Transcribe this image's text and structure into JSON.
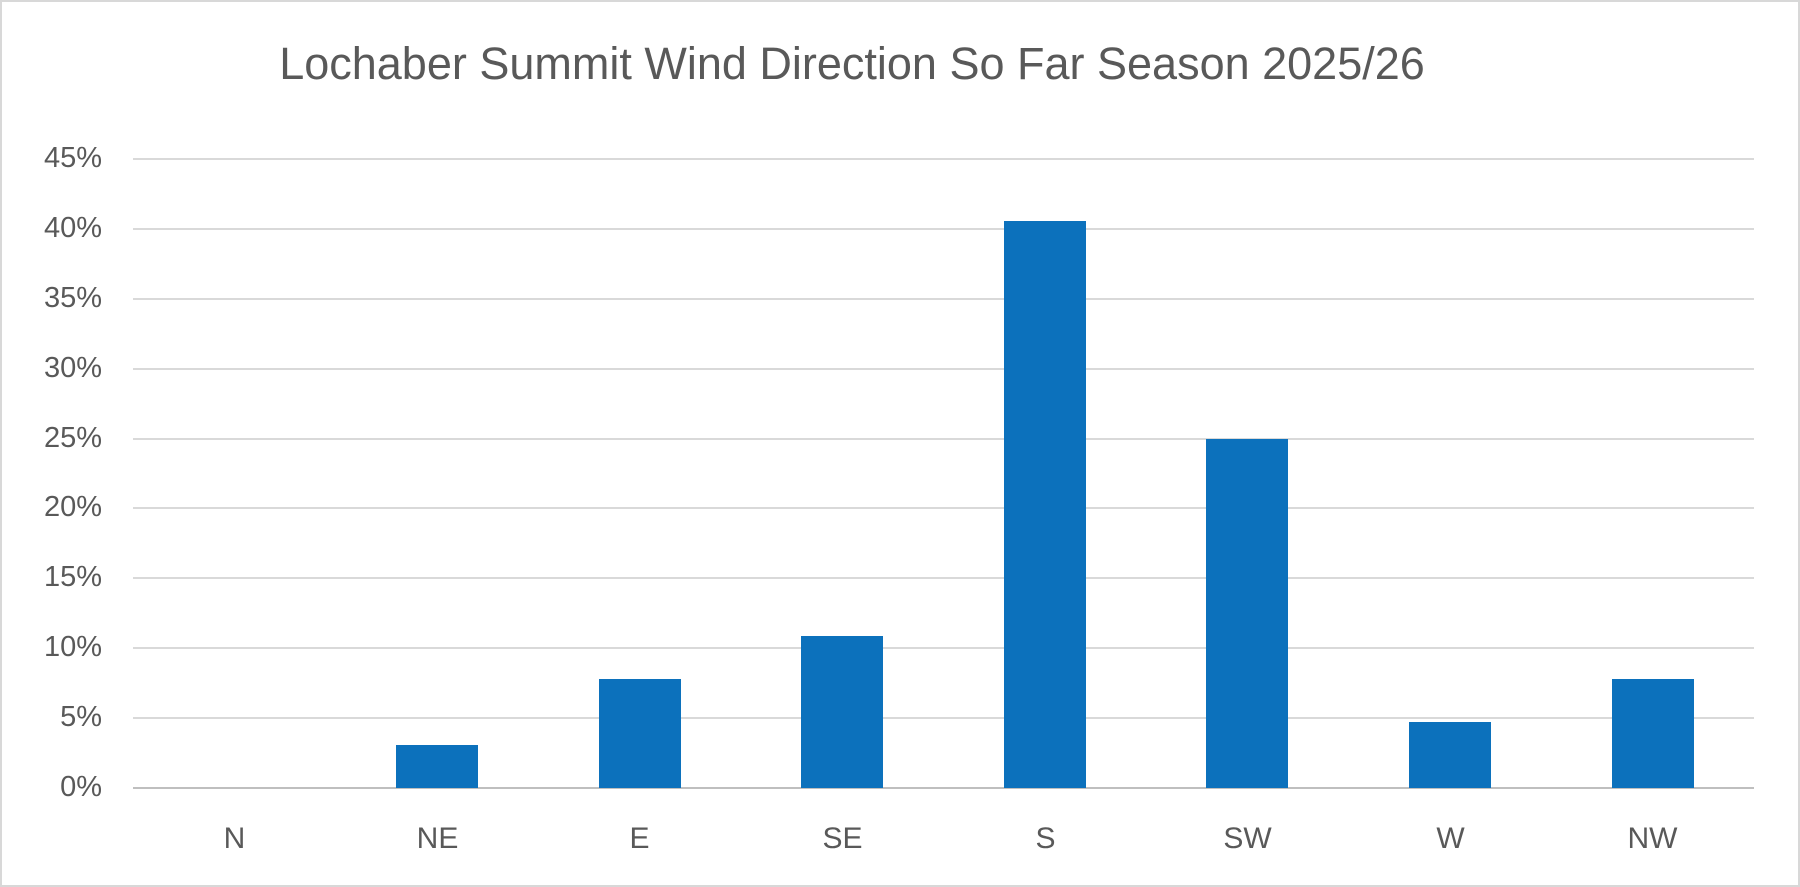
{
  "chart_data": {
    "type": "bar",
    "title": "Lochaber Summit Wind Direction So Far Season 2025/26",
    "categories": [
      "N",
      "NE",
      "E",
      "SE",
      "S",
      "SW",
      "W",
      "NW"
    ],
    "values": [
      0,
      3.1,
      7.8,
      10.9,
      40.6,
      25.0,
      4.7,
      7.8
    ],
    "unit": "%",
    "xlabel": "",
    "ylabel": "",
    "ylim": [
      0,
      45
    ],
    "ytick_step": 5,
    "ytick_labels": [
      "0%",
      "5%",
      "10%",
      "15%",
      "20%",
      "25%",
      "30%",
      "35%",
      "40%",
      "45%"
    ],
    "grid": true,
    "legend": false,
    "colors": {
      "bar": "#0c71bc",
      "gridline": "#d9d9d9",
      "axis_line": "#bfbfbf",
      "text": "#595959",
      "background": "#ffffff",
      "border": "#d8d8d8"
    }
  }
}
